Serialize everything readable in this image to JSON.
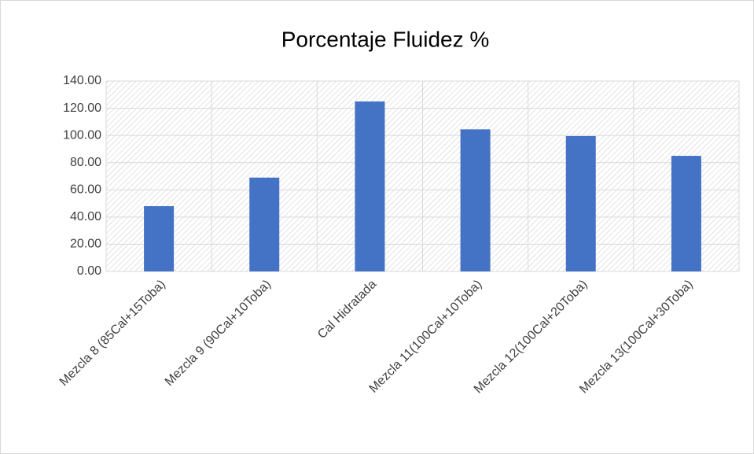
{
  "chart_data": {
    "type": "bar",
    "title": "Porcentaje Fluidez %",
    "categories": [
      "Mezcla 8 (85Cal+15Toba)",
      "Mezcla 9 (90Cal+10Toba)",
      "Cal Hidratada",
      "Mezcla 11(100Cal+10Toba)",
      "Mezcla 12(100Cal+20Toba)",
      "Mezcla 13(100Cal+30Toba)"
    ],
    "values": [
      48,
      69,
      125,
      104.5,
      99.5,
      85
    ],
    "color": "#4472c4",
    "ylim": [
      0,
      140
    ],
    "yticks": [
      {
        "value": 0,
        "label": "0.00"
      },
      {
        "value": 20,
        "label": "20.00"
      },
      {
        "value": 40,
        "label": "40.00"
      },
      {
        "value": 60,
        "label": "60.00"
      },
      {
        "value": 80,
        "label": "80.00"
      },
      {
        "value": 100,
        "label": "100.00"
      },
      {
        "value": 120,
        "label": "120.00"
      },
      {
        "value": 140,
        "label": "140.00"
      }
    ],
    "grid": true
  }
}
